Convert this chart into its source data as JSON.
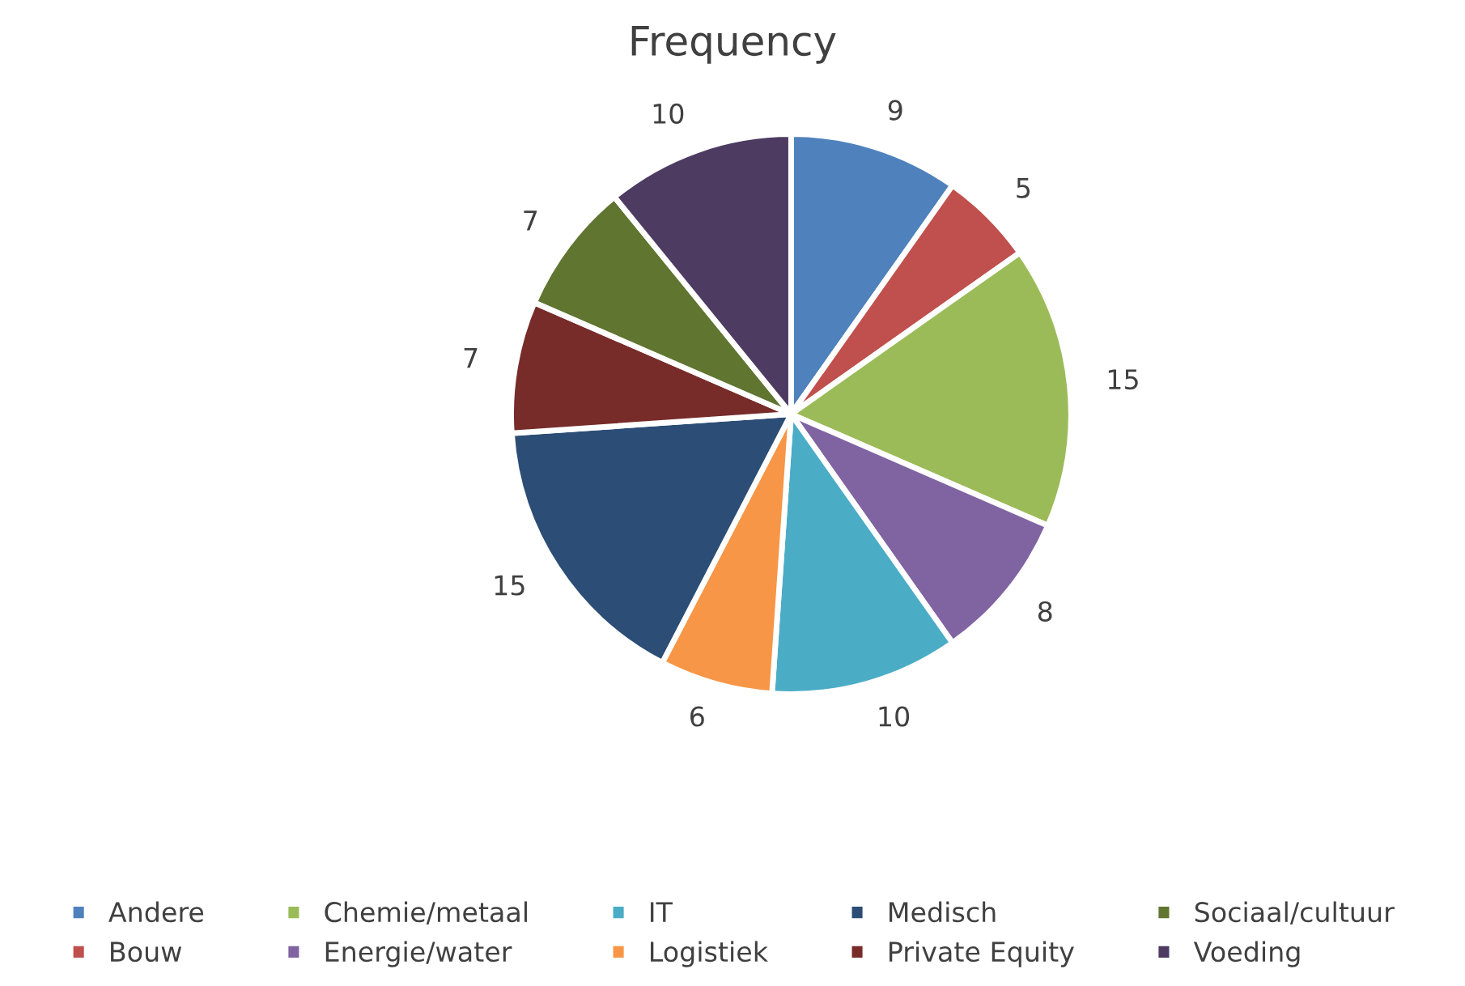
{
  "chart_data": {
    "type": "pie",
    "title": "Frequency",
    "categories": [
      "Andere",
      "Bouw",
      "Chemie/metaal",
      "Energie/water",
      "IT",
      "Logistiek",
      "Medisch",
      "Private Equity",
      "Sociaal/cultuur",
      "Voeding"
    ],
    "values": [
      9,
      5,
      15,
      8,
      10,
      6,
      15,
      7,
      7,
      10
    ],
    "colors": [
      "#4f81bd",
      "#c0504d",
      "#9bbb59",
      "#8064a2",
      "#4bacc6",
      "#f79646",
      "#2c4d75",
      "#772c2a",
      "#5f7530",
      "#4d3b62"
    ],
    "data_labels": true,
    "legend": "bottom"
  }
}
